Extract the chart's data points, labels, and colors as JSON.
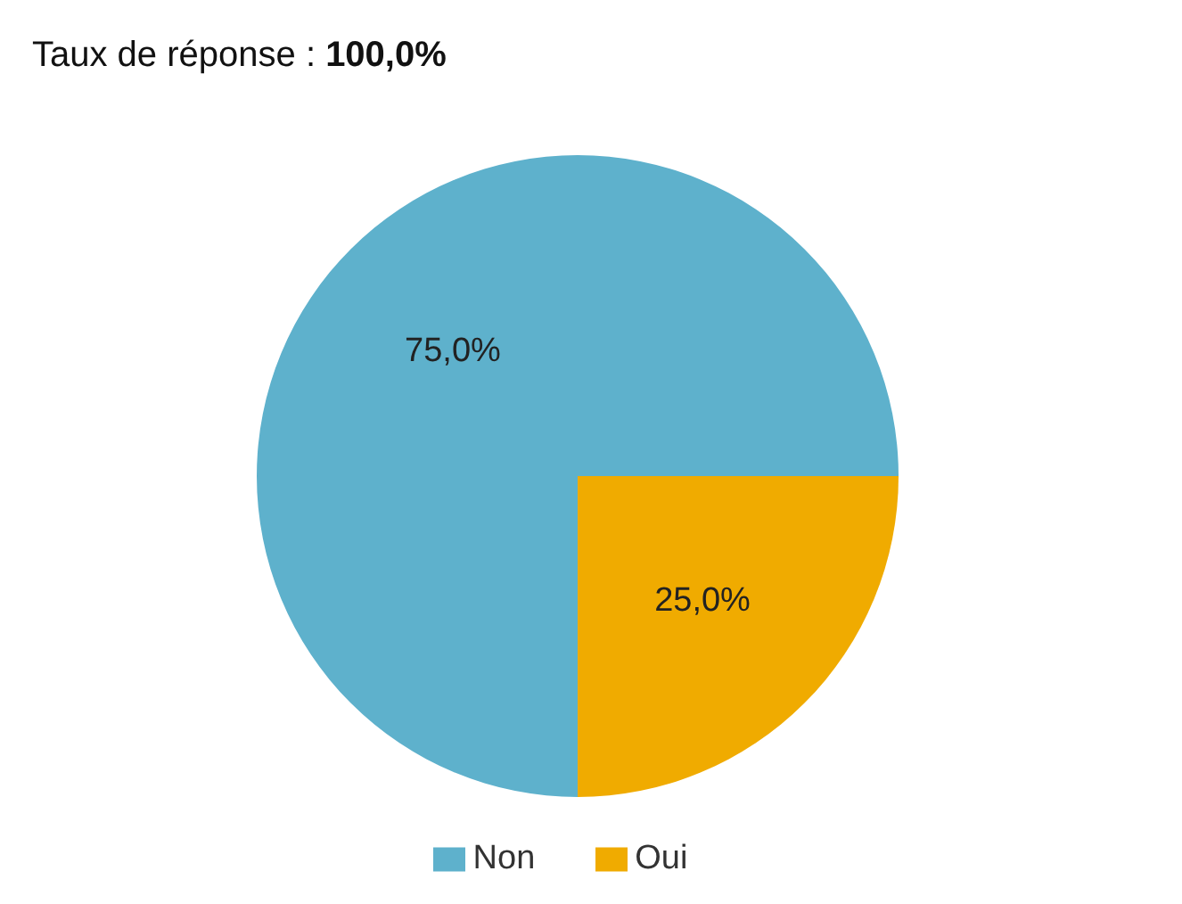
{
  "chart_data": {
    "type": "pie",
    "title": "Taux de réponse : 100,0%",
    "categories": [
      "Oui",
      "Non"
    ],
    "values": [
      25,
      75
    ],
    "colors": [
      "#f0ab00",
      "#5eb1cc"
    ],
    "value_labels": [
      "25,0%",
      "75,0%"
    ],
    "legend": "bottom"
  }
}
